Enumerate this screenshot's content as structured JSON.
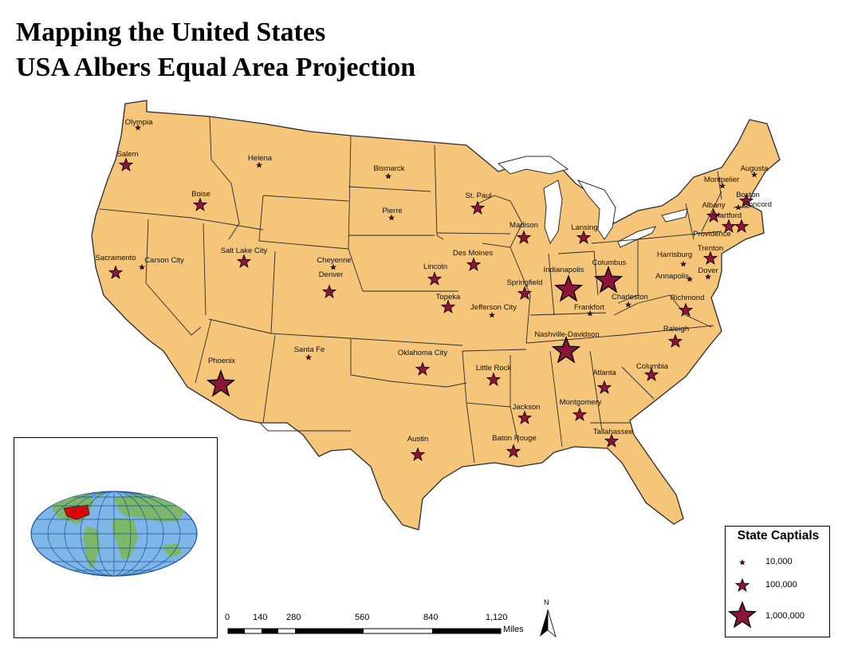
{
  "title_line1": "Mapping the United States",
  "title_line2": "USA Albers Equal Area Projection",
  "colors": {
    "land": "#F5C67A",
    "border": "#2b2b2b",
    "star_fill": "#8B1538",
    "star_stroke": "#000000",
    "ocean_inset": "#7EB6E8",
    "land_inset": "#7DB86A",
    "usa_inset": "#E00000"
  },
  "capitals": [
    {
      "name": "Olympia",
      "pop": 10000
    },
    {
      "name": "Salem",
      "pop": 100000
    },
    {
      "name": "Helena",
      "pop": 10000
    },
    {
      "name": "Bismarck",
      "pop": 10000
    },
    {
      "name": "Boise",
      "pop": 100000
    },
    {
      "name": "Pierre",
      "pop": 10000
    },
    {
      "name": "St. Paul",
      "pop": 100000
    },
    {
      "name": "Madison",
      "pop": 100000
    },
    {
      "name": "Lansing",
      "pop": 100000
    },
    {
      "name": "Augusta",
      "pop": 10000
    },
    {
      "name": "Montpelier",
      "pop": 10000
    },
    {
      "name": "Boston",
      "pop": 100000
    },
    {
      "name": "Concord",
      "pop": 10000
    },
    {
      "name": "Albany",
      "pop": 100000
    },
    {
      "name": "Hartford",
      "pop": 100000
    },
    {
      "name": "Providence",
      "pop": 100000
    },
    {
      "name": "Sacramento",
      "pop": 100000
    },
    {
      "name": "Carson City",
      "pop": 10000
    },
    {
      "name": "Salt Lake City",
      "pop": 100000
    },
    {
      "name": "Cheyenne",
      "pop": 10000
    },
    {
      "name": "Denver",
      "pop": 100000
    },
    {
      "name": "Lincoln",
      "pop": 100000
    },
    {
      "name": "Des Moines",
      "pop": 100000
    },
    {
      "name": "Springfield",
      "pop": 100000
    },
    {
      "name": "Indianapolis",
      "pop": 1000000
    },
    {
      "name": "Columbus",
      "pop": 1000000
    },
    {
      "name": "Harrisburg",
      "pop": 10000
    },
    {
      "name": "Trenton",
      "pop": 100000
    },
    {
      "name": "Dover",
      "pop": 10000
    },
    {
      "name": "Annapolis",
      "pop": 10000
    },
    {
      "name": "Charleston",
      "pop": 10000
    },
    {
      "name": "Richmond",
      "pop": 100000
    },
    {
      "name": "Topeka",
      "pop": 100000
    },
    {
      "name": "Jefferson City",
      "pop": 10000
    },
    {
      "name": "Frankfort",
      "pop": 10000
    },
    {
      "name": "Nashville-Davidson",
      "pop": 1000000
    },
    {
      "name": "Raleigh",
      "pop": 100000
    },
    {
      "name": "Santa Fe",
      "pop": 10000
    },
    {
      "name": "Oklahoma City",
      "pop": 100000
    },
    {
      "name": "Little Rock",
      "pop": 100000
    },
    {
      "name": "Phoenix",
      "pop": 1000000
    },
    {
      "name": "Atlanta",
      "pop": 100000
    },
    {
      "name": "Columbia",
      "pop": 100000
    },
    {
      "name": "Jackson",
      "pop": 100000
    },
    {
      "name": "Montgomery",
      "pop": 100000
    },
    {
      "name": "Tallahassee",
      "pop": 100000
    },
    {
      "name": "Baton Rouge",
      "pop": 100000
    },
    {
      "name": "Austin",
      "pop": 100000
    }
  ],
  "legend": {
    "title": "State Captials",
    "items": [
      {
        "label": "10,000",
        "size": "small"
      },
      {
        "label": "100,000",
        "size": "medium"
      },
      {
        "label": "1,000,000",
        "size": "large"
      }
    ]
  },
  "scale_bar": {
    "ticks": [
      "0",
      "140",
      "280",
      "560",
      "840",
      "1,120"
    ],
    "unit": "Miles"
  },
  "north_arrow": {
    "label": "N"
  }
}
